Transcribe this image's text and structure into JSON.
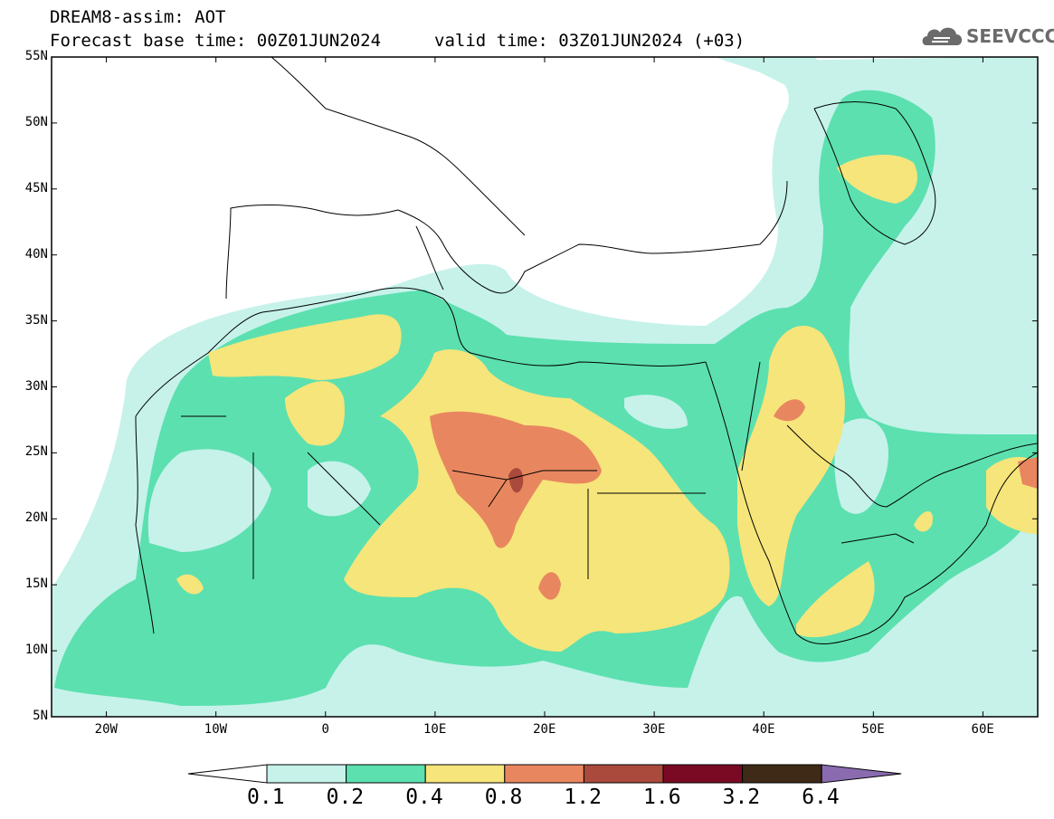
{
  "header": {
    "model_title": "DREAM8-assim: AOT",
    "base_time": "Forecast base time: 00Z01JUN2024",
    "valid_time": "valid time: 03Z01JUN2024 (+03)",
    "logo_text": "SEEVCCC",
    "logo_icon": "cloud-icon"
  },
  "map": {
    "lon_range": [
      -25,
      65
    ],
    "lat_range": [
      5,
      55
    ],
    "lat_labels": [
      "55N",
      "50N",
      "45N",
      "40N",
      "35N",
      "30N",
      "25N",
      "20N",
      "15N",
      "10N",
      "5N"
    ],
    "lon_labels": [
      "20W",
      "10W",
      "0",
      "10E",
      "20E",
      "30E",
      "40E",
      "50E",
      "60E"
    ],
    "background_color": "#ffffff"
  },
  "colorbar": {
    "labels": [
      "0.1",
      "0.2",
      "0.4",
      "0.8",
      "1.2",
      "1.6",
      "3.2",
      "6.4"
    ],
    "colors": [
      "#ffffff",
      "#c6f2ea",
      "#5ce0b0",
      "#f6e57a",
      "#e8875f",
      "#a94a3c",
      "#7a0a24",
      "#3f2a17",
      "#8a6bb0"
    ]
  }
}
